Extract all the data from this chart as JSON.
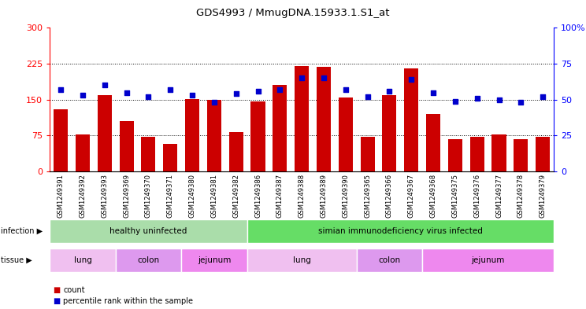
{
  "title": "GDS4993 / MmugDNA.15933.1.S1_at",
  "samples": [
    "GSM1249391",
    "GSM1249392",
    "GSM1249393",
    "GSM1249369",
    "GSM1249370",
    "GSM1249371",
    "GSM1249380",
    "GSM1249381",
    "GSM1249382",
    "GSM1249386",
    "GSM1249387",
    "GSM1249388",
    "GSM1249389",
    "GSM1249390",
    "GSM1249365",
    "GSM1249366",
    "GSM1249367",
    "GSM1249368",
    "GSM1249375",
    "GSM1249376",
    "GSM1249377",
    "GSM1249378",
    "GSM1249379"
  ],
  "counts": [
    130,
    77,
    160,
    105,
    73,
    57,
    152,
    150,
    83,
    147,
    180,
    220,
    219,
    155,
    73,
    160,
    215,
    120,
    67,
    72,
    77,
    67,
    73
  ],
  "percentiles": [
    57,
    53,
    60,
    55,
    52,
    57,
    53,
    48,
    54,
    56,
    57,
    65,
    65,
    57,
    52,
    56,
    64,
    55,
    49,
    51,
    50,
    48,
    52
  ],
  "bar_color": "#cc0000",
  "dot_color": "#0000cc",
  "ylim_left": [
    0,
    300
  ],
  "ylim_right": [
    0,
    100
  ],
  "yticks_left": [
    0,
    75,
    150,
    225,
    300
  ],
  "yticks_right": [
    0,
    25,
    50,
    75,
    100
  ],
  "infection_groups": [
    {
      "label": "healthy uninfected",
      "start": 0,
      "end": 9,
      "color": "#aaddaa"
    },
    {
      "label": "simian immunodeficiency virus infected",
      "start": 9,
      "end": 23,
      "color": "#66dd66"
    }
  ],
  "tissue_groups": [
    {
      "label": "lung",
      "start": 0,
      "end": 3,
      "color": "#f0c0f0"
    },
    {
      "label": "colon",
      "start": 3,
      "end": 6,
      "color": "#dd99ee"
    },
    {
      "label": "jejunum",
      "start": 6,
      "end": 9,
      "color": "#ee88ee"
    },
    {
      "label": "lung",
      "start": 9,
      "end": 14,
      "color": "#f0c0f0"
    },
    {
      "label": "colon",
      "start": 14,
      "end": 17,
      "color": "#dd99ee"
    },
    {
      "label": "jejunum",
      "start": 17,
      "end": 23,
      "color": "#ee88ee"
    }
  ],
  "legend_count_color": "#cc0000",
  "legend_percentile_color": "#0000cc",
  "plot_bg_color": "#ffffff",
  "fig_bg_color": "#ffffff"
}
